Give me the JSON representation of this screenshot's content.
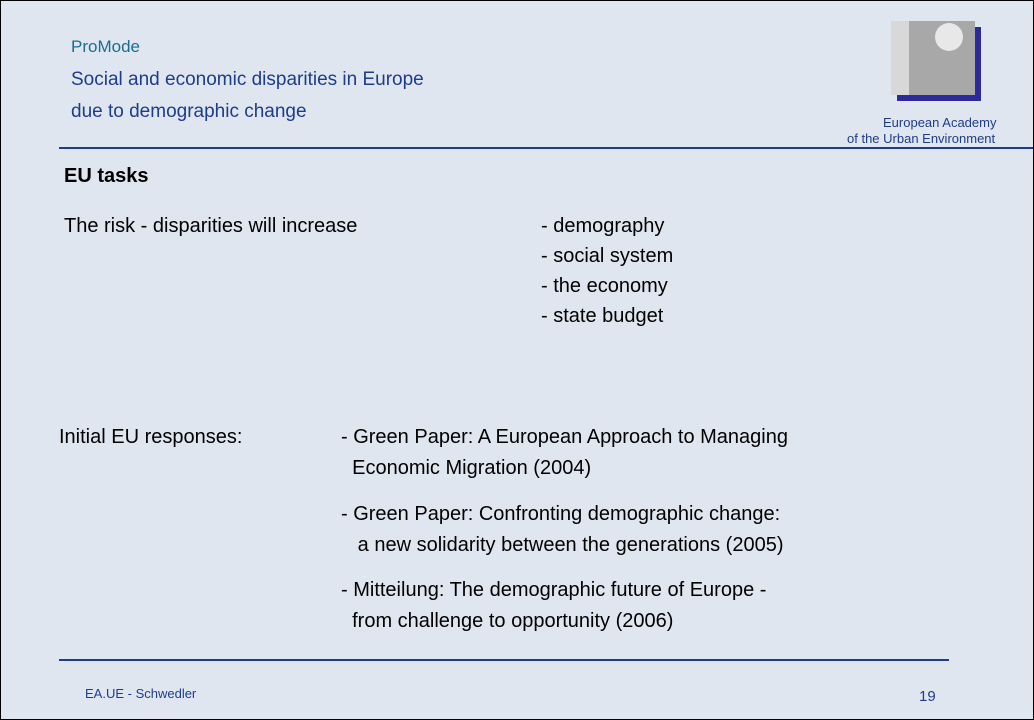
{
  "header": {
    "project": "ProMode",
    "title_lines": [
      "Social and economic disparities in Europe",
      "due to demographic change"
    ],
    "logo_lines": [
      "European Academy",
      "of the Urban Environment"
    ]
  },
  "heading": "EU tasks",
  "risk": {
    "label": "The risk - disparities will increase",
    "items": [
      "- demography",
      "- social system",
      "- the economy",
      "- state budget"
    ]
  },
  "responses": {
    "label": "Initial EU responses:",
    "items": [
      [
        "- Green Paper: A European Approach to Managing",
        "  Economic Migration (2004)"
      ],
      [
        "- Green Paper: Confronting demographic change:",
        "   a new solidarity between the generations (2005)"
      ],
      [
        "- Mitteilung: The demographic future of Europe -",
        "  from challenge to opportunity (2006)"
      ]
    ]
  },
  "footer": {
    "author": "EA.UE - Schwedler",
    "page": "19"
  }
}
